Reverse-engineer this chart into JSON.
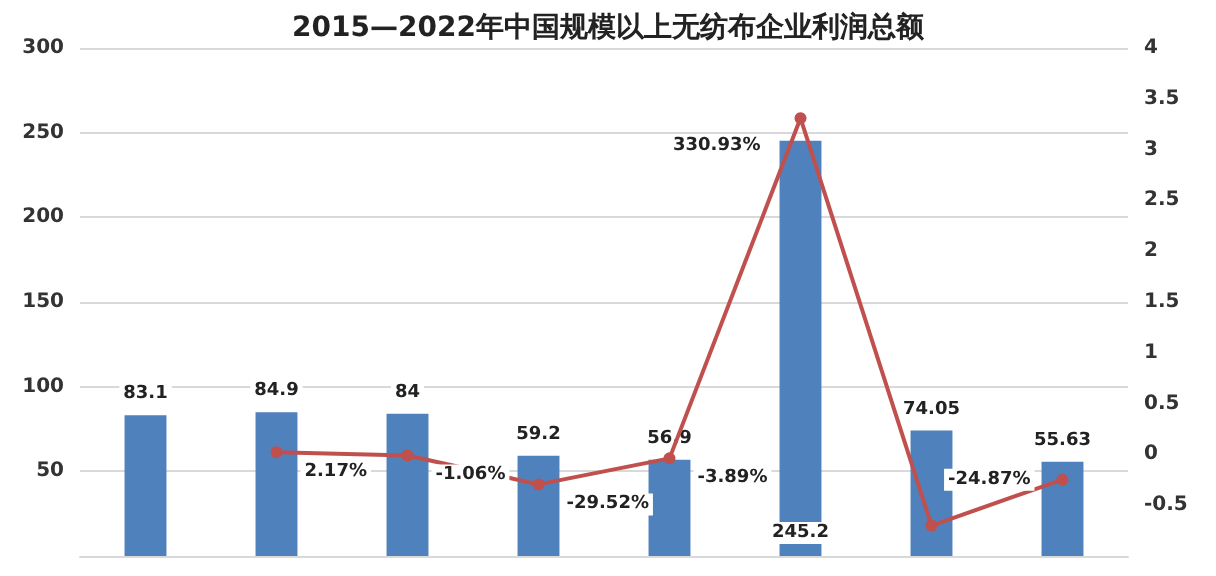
{
  "chart_data": {
    "type": "bar",
    "title": "2015—2022年中国规模以上无纺布企业利润总额",
    "categories": [
      null,
      null,
      null,
      null,
      null,
      null,
      null,
      null
    ],
    "series": [
      {
        "color": "#4f81bd",
        "values": [
          83.1,
          84.9,
          84,
          59.2,
          56.9,
          245.2,
          74.05,
          55.63
        ],
        "value_labels": [
          "83.1",
          "84.9",
          "84",
          "59.2",
          "56.9",
          "245.2",
          "74.05",
          "55.63"
        ]
      },
      {
        "type": "line",
        "axis": "y2",
        "color": "#c0504d",
        "marker": "circle",
        "values": [
          null,
          0.0217,
          -0.0106,
          -0.2952,
          -0.0389,
          3.3093,
          -0.7,
          -0.2487
        ],
        "value_labels": [
          null,
          "2.17%",
          "-1.06%",
          "-29.52%",
          "-3.89%",
          "330.93%",
          null,
          "-24.87%"
        ]
      }
    ],
    "ylim": [
      0,
      300
    ],
    "yticks": [
      50,
      100,
      150,
      200,
      250,
      300
    ],
    "y2lim": [
      -1,
      4
    ],
    "y2ticks": [
      -0.5,
      0,
      0.5,
      1,
      1.5,
      2,
      2.5,
      3,
      3.5,
      4
    ],
    "grid": "y"
  }
}
